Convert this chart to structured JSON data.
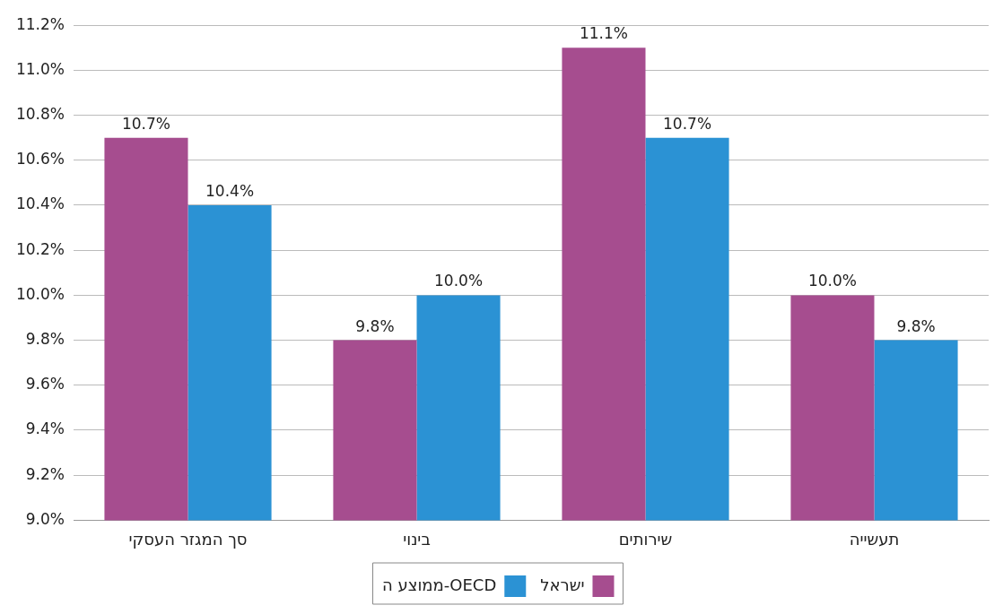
{
  "chart_data": {
    "type": "bar",
    "categories": [
      "סך המגזר העסקי",
      "בינוי",
      "שירותים",
      "תעשייה"
    ],
    "series": [
      {
        "name": "ישראל",
        "color": "#a64d8f",
        "values": [
          10.7,
          9.8,
          11.1,
          10.0
        ],
        "value_labels": [
          "10.7%",
          "9.8%",
          "11.1%",
          "10.0%"
        ]
      },
      {
        "name": "ממוצע ה-OECD",
        "color": "#2b92d4",
        "values": [
          10.4,
          10.0,
          10.7,
          9.8
        ],
        "value_labels": [
          "10.4%",
          "10.0%",
          "10.7%",
          "9.8%"
        ]
      }
    ],
    "ylim": [
      9.0,
      11.2
    ],
    "yticks": [
      {
        "value": 9.0,
        "label": "9.0%"
      },
      {
        "value": 9.2,
        "label": "9.2%"
      },
      {
        "value": 9.4,
        "label": "9.4%"
      },
      {
        "value": 9.6,
        "label": "9.6%"
      },
      {
        "value": 9.8,
        "label": "9.8%"
      },
      {
        "value": 10.0,
        "label": "10.0%"
      },
      {
        "value": 10.2,
        "label": "10.2%"
      },
      {
        "value": 10.4,
        "label": "10.4%"
      },
      {
        "value": 10.6,
        "label": "10.6%"
      },
      {
        "value": 10.8,
        "label": "10.8%"
      },
      {
        "value": 11.0,
        "label": "11.0%"
      },
      {
        "value": 11.2,
        "label": "11.2%"
      }
    ],
    "grid": "y",
    "legend": "bottom"
  }
}
